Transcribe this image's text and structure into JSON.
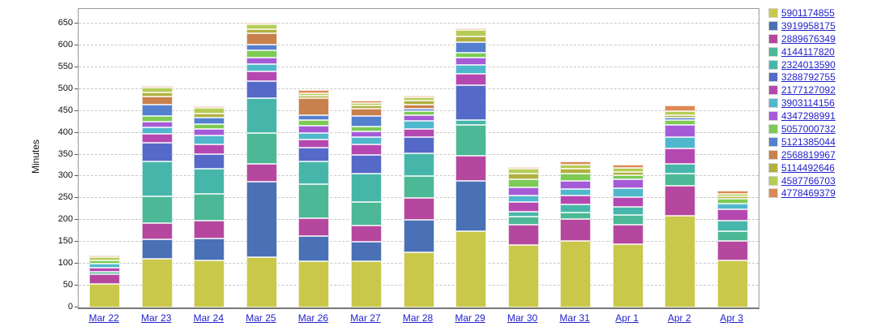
{
  "chart_data": {
    "type": "bar",
    "stacked": true,
    "title": "",
    "xlabel": "",
    "ylabel": "Minutes",
    "ylim": [
      0,
      650
    ],
    "y_ticks": [
      0,
      50,
      100,
      150,
      200,
      250,
      300,
      350,
      400,
      450,
      500,
      550,
      600,
      650
    ],
    "grid": "horizontal-dashed",
    "legend_position": "right",
    "link_color": "#2222CC",
    "categories": [
      "Mar 22",
      "Mar 23",
      "Mar 24",
      "Mar 25",
      "Mar 26",
      "Mar 27",
      "Mar 28",
      "Mar 29",
      "Mar 30",
      "Mar 31",
      "Apr 1",
      "Apr 2",
      "Apr 3"
    ],
    "series": [
      {
        "name": "5901174855",
        "color": "#C9C84A",
        "values": [
          54,
          111,
          108,
          115,
          105,
          105,
          127,
          175,
          143,
          153,
          144,
          209,
          107
        ]
      },
      {
        "name": "3919958175",
        "color": "#4A70B5",
        "values": [
          0,
          45,
          50,
          172,
          59,
          46,
          74,
          115,
          0,
          0,
          0,
          0,
          0
        ]
      },
      {
        "name": "2889676349",
        "color": "#B5489E",
        "values": [
          23,
          37,
          41,
          41,
          40,
          37,
          50,
          57,
          46,
          49,
          45,
          70,
          45
        ]
      },
      {
        "name": "4144117820",
        "color": "#4CB896",
        "values": [
          4,
          62,
          61,
          71,
          79,
          53,
          49,
          71,
          19,
          16,
          22,
          28,
          23
        ]
      },
      {
        "name": "2324013590",
        "color": "#47B6AA",
        "values": [
          0,
          79,
          57,
          80,
          52,
          65,
          53,
          12,
          12,
          18,
          19,
          22,
          24
        ]
      },
      {
        "name": "3288792755",
        "color": "#5569C9",
        "values": [
          0,
          43,
          35,
          39,
          31,
          43,
          37,
          79,
          0,
          0,
          0,
          0,
          0
        ]
      },
      {
        "name": "2177127092",
        "color": "#B548B0",
        "values": [
          11,
          21,
          22,
          23,
          18,
          25,
          19,
          26,
          22,
          20,
          22,
          35,
          26
        ]
      },
      {
        "name": "3903114156",
        "color": "#4FB8CC",
        "values": [
          9,
          15,
          20,
          17,
          16,
          17,
          19,
          21,
          14,
          15,
          22,
          26,
          12
        ]
      },
      {
        "name": "4347298991",
        "color": "#A55BD6",
        "values": [
          0,
          12,
          14,
          14,
          16,
          12,
          12,
          16,
          19,
          19,
          19,
          28,
          0
        ]
      },
      {
        "name": "5057000732",
        "color": "#7CCB55",
        "values": [
          7,
          14,
          11,
          16,
          13,
          11,
          9,
          11,
          19,
          17,
          9,
          12,
          12
        ]
      },
      {
        "name": "5121385044",
        "color": "#5580CF",
        "values": [
          0,
          26,
          16,
          14,
          12,
          25,
          6,
          24,
          0,
          0,
          0,
          4,
          0
        ]
      },
      {
        "name": "2568819967",
        "color": "#C8804C",
        "values": [
          0,
          18,
          0,
          25,
          38,
          17,
          9,
          0,
          0,
          0,
          0,
          0,
          0
        ]
      },
      {
        "name": "5114492646",
        "color": "#B0B040",
        "values": [
          0,
          10,
          9,
          10,
          5,
          6,
          9,
          14,
          12,
          11,
          9,
          7,
          5
        ]
      },
      {
        "name": "4587766703",
        "color": "#B5CC55",
        "values": [
          8,
          10,
          13,
          11,
          7,
          6,
          9,
          14,
          11,
          9,
          9,
          8,
          7
        ]
      },
      {
        "name": "4778469379",
        "color": "#DD8855",
        "values": [
          2,
          4,
          3,
          4,
          6,
          6,
          2,
          4,
          2,
          8,
          7,
          13,
          6
        ]
      }
    ]
  }
}
